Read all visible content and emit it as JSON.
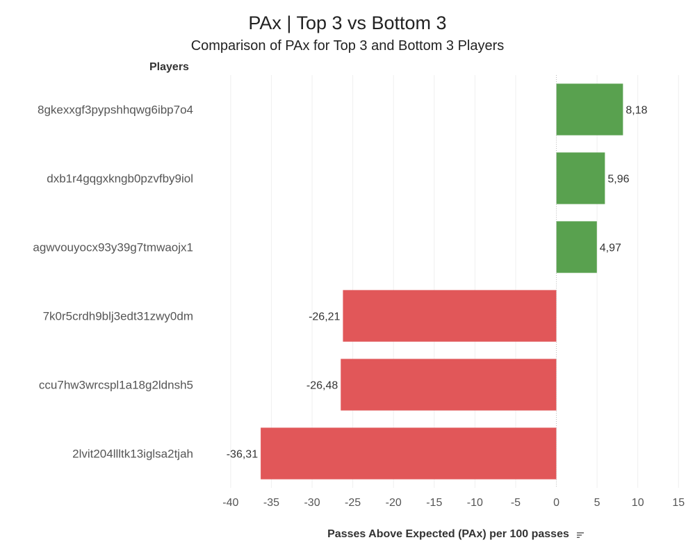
{
  "chart_data": {
    "type": "bar",
    "orientation": "horizontal",
    "title": "PAx | Top 3 vs Bottom 3",
    "subtitle": "Comparison of PAx for Top 3 and Bottom 3 Players",
    "ylabel": "Players",
    "xlabel": "Passes Above Expected (PAx) per 100 passes",
    "categories": [
      "8gkexxgf3pypshhqwg6ibp7o4",
      "dxb1r4gqgxkngb0pzvfby9iol",
      "agwvouyocx93y39g7tmwaojx1",
      "7k0r5crdh9blj3edt31zwy0dm",
      "ccu7hw3wrcspl1a18g2ldnsh5",
      "2lvit204llltk13iglsa2tjah"
    ],
    "values": [
      8.18,
      5.96,
      4.97,
      -26.21,
      -26.48,
      -36.31
    ],
    "value_labels": [
      "8,18",
      "5,96",
      "4,97",
      "-26,21",
      "-26,48",
      "-36,31"
    ],
    "xlim": [
      -44,
      16
    ],
    "xticks": [
      -40,
      -35,
      -30,
      -25,
      -20,
      -15,
      -10,
      -5,
      0,
      5,
      10,
      15
    ],
    "xtick_labels": [
      "-40",
      "-35",
      "-30",
      "-25",
      "-20",
      "-15",
      "-10",
      "-5",
      "0",
      "5",
      "10",
      "15"
    ],
    "colors": {
      "positive": "#59A14F",
      "negative": "#E15759",
      "grid": "#efefef",
      "zero_line": "#bbbbbb",
      "tick_text": "#555555",
      "category_text": "#555555",
      "value_text": "#333333"
    },
    "grid": true,
    "sort_icon": "sort-descending-icon"
  }
}
